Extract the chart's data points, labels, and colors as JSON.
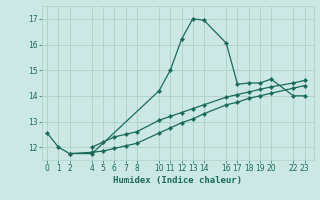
{
  "xlabel": "Humidex (Indice chaleur)",
  "bg_color": "#cce8e4",
  "grid_color": "#b0d4cc",
  "line_color": "#1a6b5a",
  "xticks": [
    0,
    1,
    2,
    4,
    5,
    6,
    7,
    8,
    10,
    11,
    12,
    13,
    14,
    16,
    17,
    18,
    19,
    20,
    22,
    23
  ],
  "yticks": [
    12,
    13,
    14,
    15,
    16,
    17
  ],
  "xlim": [
    -0.5,
    23.8
  ],
  "ylim": [
    11.5,
    17.5
  ],
  "line1_x": [
    0,
    1,
    2,
    4,
    10,
    11,
    12,
    13,
    14,
    16,
    17,
    18,
    19,
    20,
    22,
    23
  ],
  "line1_y": [
    12.55,
    12.0,
    11.75,
    11.75,
    14.2,
    15.0,
    16.2,
    17.0,
    16.95,
    16.05,
    14.45,
    14.5,
    14.5,
    14.65,
    14.0,
    14.0
  ],
  "line2_x": [
    4,
    5,
    6,
    7,
    8,
    10,
    11,
    12,
    13,
    14,
    16,
    17,
    18,
    19,
    20,
    22,
    23
  ],
  "line2_y": [
    12.0,
    12.2,
    12.4,
    12.5,
    12.6,
    13.05,
    13.2,
    13.35,
    13.5,
    13.65,
    13.95,
    14.05,
    14.15,
    14.25,
    14.35,
    14.5,
    14.6
  ],
  "line3_x": [
    2,
    4,
    5,
    6,
    7,
    8,
    10,
    11,
    12,
    13,
    14,
    16,
    17,
    18,
    19,
    20,
    22,
    23
  ],
  "line3_y": [
    11.75,
    11.8,
    11.85,
    11.95,
    12.05,
    12.15,
    12.55,
    12.75,
    12.95,
    13.1,
    13.3,
    13.65,
    13.75,
    13.9,
    14.0,
    14.1,
    14.3,
    14.4
  ]
}
